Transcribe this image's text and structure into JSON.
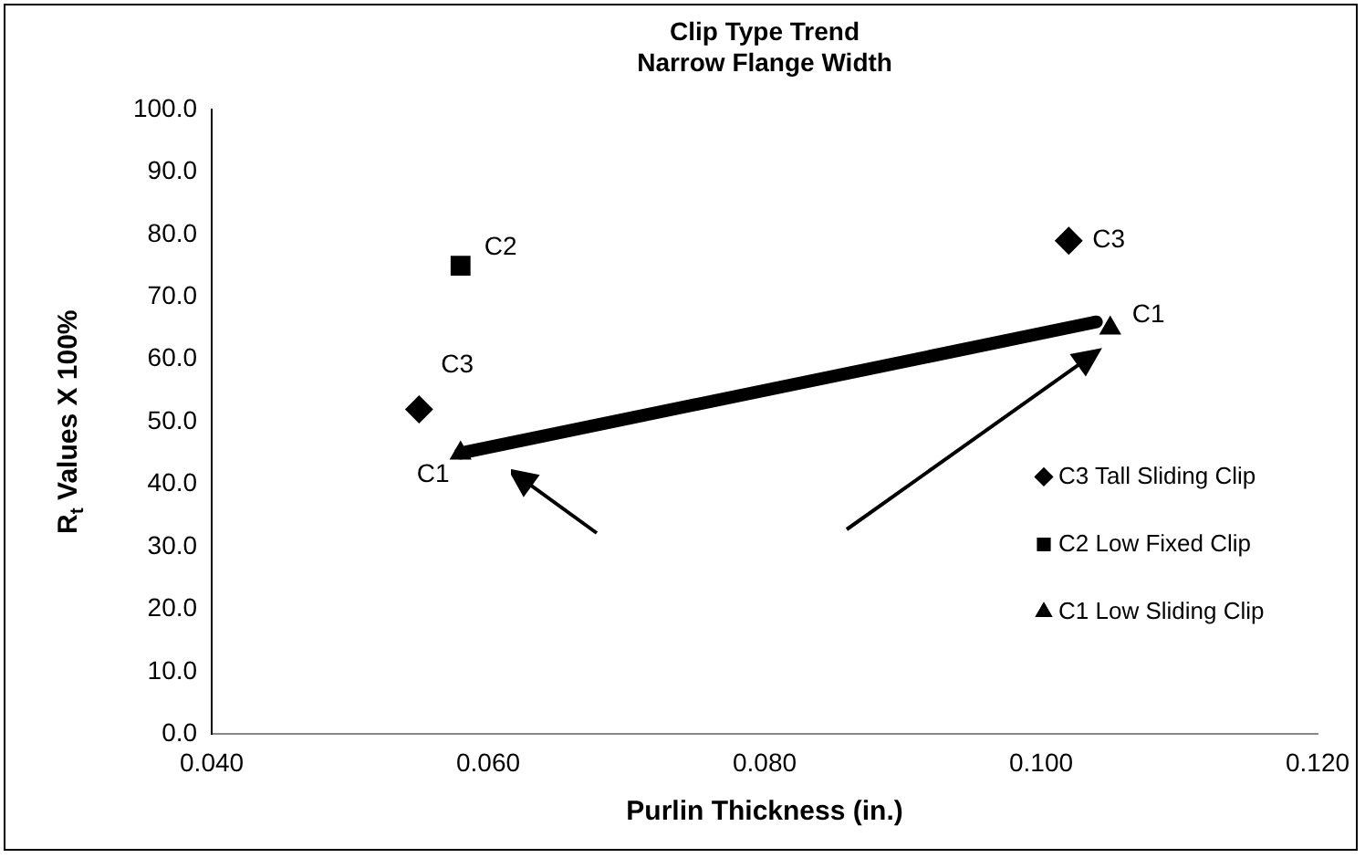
{
  "chart_data": {
    "type": "scatter",
    "title": "Clip Type Trend\nNarrow Flange Width",
    "xlabel": "Purlin Thickness (in.)",
    "ylabel": "R$_{t}$ Values X 100%",
    "series": [
      {
        "name": "C3 Tall Sliding Clip",
        "color": "#000000",
        "marker": "diamond",
        "x": [
          0.055,
          0.102
        ],
        "values": [
          52,
          79
        ]
      },
      {
        "name": "C2 Low Fixed Clip",
        "color": "#000000",
        "marker": "square",
        "x": [
          0.058
        ],
        "values": [
          75
        ]
      },
      {
        "name": "C1 Low Sliding Clip",
        "color": "#000000",
        "marker": "triangle",
        "x": [
          0.058,
          0.105
        ],
        "values": [
          45,
          65
        ]
      },
      {
        "type": "line",
        "color": "#000000",
        "marker": "none",
        "x": [
          0.058,
          0.104
        ],
        "values": [
          45,
          66
        ]
      }
    ],
    "xlim": [
      0.04,
      0.12
    ],
    "xticks": [
      {
        "value": 0.04,
        "label": "0.040"
      },
      {
        "value": 0.06,
        "label": "0.060"
      },
      {
        "value": 0.08,
        "label": "0.080"
      },
      {
        "value": 0.1,
        "label": "0.100"
      },
      {
        "value": 0.12,
        "label": "0.120"
      }
    ],
    "ylim": [
      0,
      100
    ],
    "yticks": [
      {
        "value": 0,
        "label": "0.0"
      },
      {
        "value": 10,
        "label": "10.0"
      },
      {
        "value": 20,
        "label": "20.0"
      },
      {
        "value": 30,
        "label": "30.0"
      },
      {
        "value": 40,
        "label": "40.0"
      },
      {
        "value": 50,
        "label": "50.0"
      },
      {
        "value": 60,
        "label": "60.0"
      },
      {
        "value": 70,
        "label": "70.0"
      },
      {
        "value": 80,
        "label": "80.0"
      },
      {
        "value": 90,
        "label": "90.0"
      },
      {
        "value": 100,
        "label": "100.0"
      }
    ],
    "annotations": [
      {
        "text": "C3",
        "x": 0.055,
        "y": 52
      },
      {
        "text": "C2",
        "x": 0.058,
        "y": 75
      },
      {
        "text": "C3",
        "x": 0.102,
        "y": 79
      },
      {
        "text": "C1",
        "x": 0.105,
        "y": 65
      },
      {
        "text": "C1",
        "x": 0.058,
        "y": 45
      }
    ],
    "grid": false,
    "legend": "right"
  }
}
